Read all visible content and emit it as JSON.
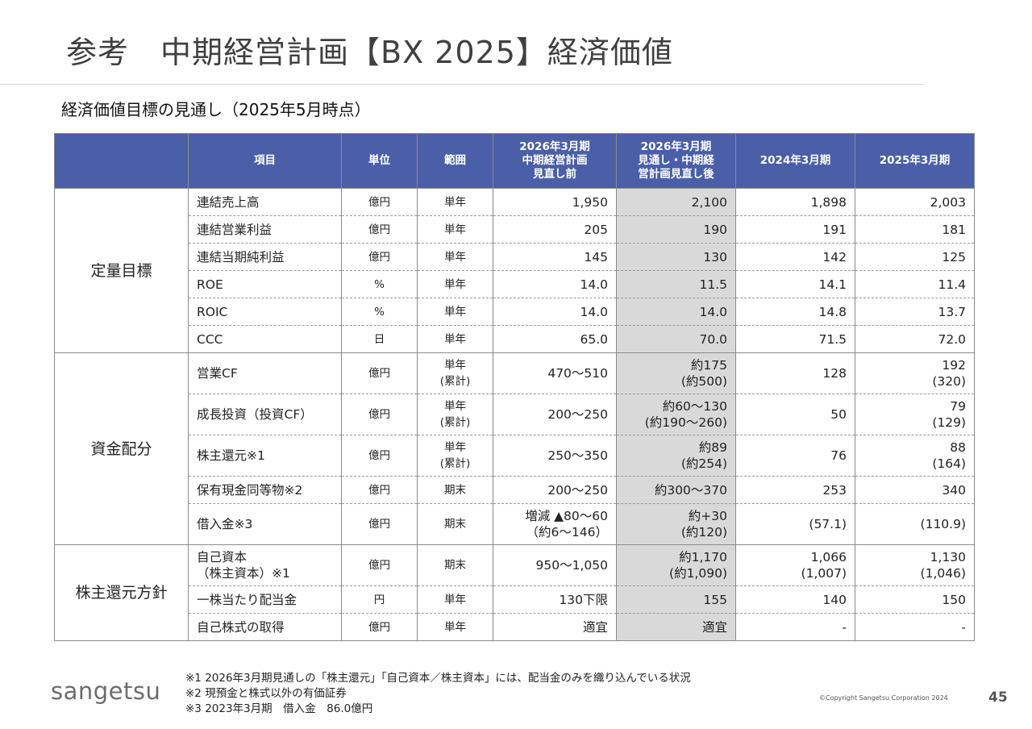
{
  "title": "参考　中期経営計画【BX 2025】経済価値",
  "subtitle": "経済価値目標の見通し（2025年5月時点）",
  "table": {
    "headers": {
      "blank": "",
      "item": "項目",
      "unit": "単位",
      "range": "範囲",
      "col_plan_before": [
        "2026年3月期",
        "中期経営計画",
        "見直し前"
      ],
      "col_outlook_after": [
        "2026年3月期",
        "見通し・中期経",
        "営計画見直し後"
      ],
      "col_fy2024": "2024年3月期",
      "col_fy2025": "2025年3月期"
    },
    "groups": [
      {
        "label": "定量目標",
        "rows": [
          {
            "item": [
              "連結売上高"
            ],
            "unit": "億円",
            "range": [
              "単年"
            ],
            "before": [
              "1,950"
            ],
            "after": [
              "2,100"
            ],
            "fy2024": [
              "1,898"
            ],
            "fy2025": [
              "2,003"
            ]
          },
          {
            "item": [
              "連結営業利益"
            ],
            "unit": "億円",
            "range": [
              "単年"
            ],
            "before": [
              "205"
            ],
            "after": [
              "190"
            ],
            "fy2024": [
              "191"
            ],
            "fy2025": [
              "181"
            ]
          },
          {
            "item": [
              "連結当期純利益"
            ],
            "unit": "億円",
            "range": [
              "単年"
            ],
            "before": [
              "145"
            ],
            "after": [
              "130"
            ],
            "fy2024": [
              "142"
            ],
            "fy2025": [
              "125"
            ]
          },
          {
            "item": [
              "ROE"
            ],
            "unit": "%",
            "range": [
              "単年"
            ],
            "before": [
              "14.0"
            ],
            "after": [
              "11.5"
            ],
            "fy2024": [
              "14.1"
            ],
            "fy2025": [
              "11.4"
            ]
          },
          {
            "item": [
              "ROIC"
            ],
            "unit": "%",
            "range": [
              "単年"
            ],
            "before": [
              "14.0"
            ],
            "after": [
              "14.0"
            ],
            "fy2024": [
              "14.8"
            ],
            "fy2025": [
              "13.7"
            ]
          },
          {
            "item": [
              "CCC"
            ],
            "unit": "日",
            "range": [
              "単年"
            ],
            "before": [
              "65.0"
            ],
            "after": [
              "70.0"
            ],
            "fy2024": [
              "71.5"
            ],
            "fy2025": [
              "72.0"
            ]
          }
        ]
      },
      {
        "label": "資金配分",
        "rows": [
          {
            "item": [
              "営業CF"
            ],
            "unit": "億円",
            "range": [
              "単年",
              "(累計)"
            ],
            "before": [
              "470～510"
            ],
            "after": [
              "約175",
              "(約500)"
            ],
            "fy2024": [
              "128"
            ],
            "fy2025": [
              "192",
              "(320)"
            ]
          },
          {
            "item": [
              "成長投資（投資CF）"
            ],
            "unit": "億円",
            "range": [
              "単年",
              "(累計)"
            ],
            "before": [
              "200～250"
            ],
            "after": [
              "約60～130",
              "(約190～260)"
            ],
            "fy2024": [
              "50"
            ],
            "fy2025": [
              "79",
              "(129)"
            ]
          },
          {
            "item": [
              "株主還元※1"
            ],
            "unit": "億円",
            "range": [
              "単年",
              "(累計)"
            ],
            "before": [
              "250～350"
            ],
            "after": [
              "約89",
              "(約254)"
            ],
            "fy2024": [
              "76"
            ],
            "fy2025": [
              "88",
              "(164)"
            ]
          },
          {
            "item": [
              "保有現金同等物※2"
            ],
            "unit": "億円",
            "range": [
              "期末"
            ],
            "before": [
              "200～250"
            ],
            "after": [
              "約300～370"
            ],
            "fy2024": [
              "253"
            ],
            "fy2025": [
              "340"
            ]
          },
          {
            "item": [
              "借入金※3"
            ],
            "unit": "億円",
            "range": [
              "期末"
            ],
            "before": [
              "増減 ▲80～60",
              "（約6～146）"
            ],
            "after": [
              "約+30",
              "(約120)"
            ],
            "fy2024": [
              "(57.1)"
            ],
            "fy2025": [
              "(110.9)"
            ]
          }
        ]
      },
      {
        "label": "株主還元方針",
        "rows": [
          {
            "item": [
              "自己資本",
              "（株主資本）※1"
            ],
            "unit": "億円",
            "range": [
              "期末"
            ],
            "before": [
              "950～1,050"
            ],
            "after": [
              "約1,170",
              "(約1,090)"
            ],
            "fy2024": [
              "1,066",
              "(1,007)"
            ],
            "fy2025": [
              "1,130",
              "(1,046)"
            ]
          },
          {
            "item": [
              "一株当たり配当金"
            ],
            "unit": "円",
            "range": [
              "単年"
            ],
            "before": [
              "130下限"
            ],
            "after": [
              "155"
            ],
            "fy2024": [
              "140"
            ],
            "fy2025": [
              "150"
            ]
          },
          {
            "item": [
              "自己株式の取得"
            ],
            "unit": "億円",
            "range": [
              "単年"
            ],
            "before": [
              "適宜"
            ],
            "after": [
              "適宜"
            ],
            "fy2024": [
              "-"
            ],
            "fy2025": [
              "-"
            ]
          }
        ]
      }
    ]
  },
  "footnotes": [
    "※1 2026年3月期見通しの「株主還元」「自己資本／株主資本」には、配当金のみを織り込んでいる状況",
    "※2 現預金と株式以外の有価証券",
    "※3 2023年3月期　借入金　86.0億円"
  ],
  "logo": "sangetsu",
  "copyright": "©Copyright Sangetsu Corporation 2024",
  "page_number": "45",
  "colors": {
    "header_bg": "#4a5fa8",
    "highlight_column_bg": "#d9d9d9"
  }
}
